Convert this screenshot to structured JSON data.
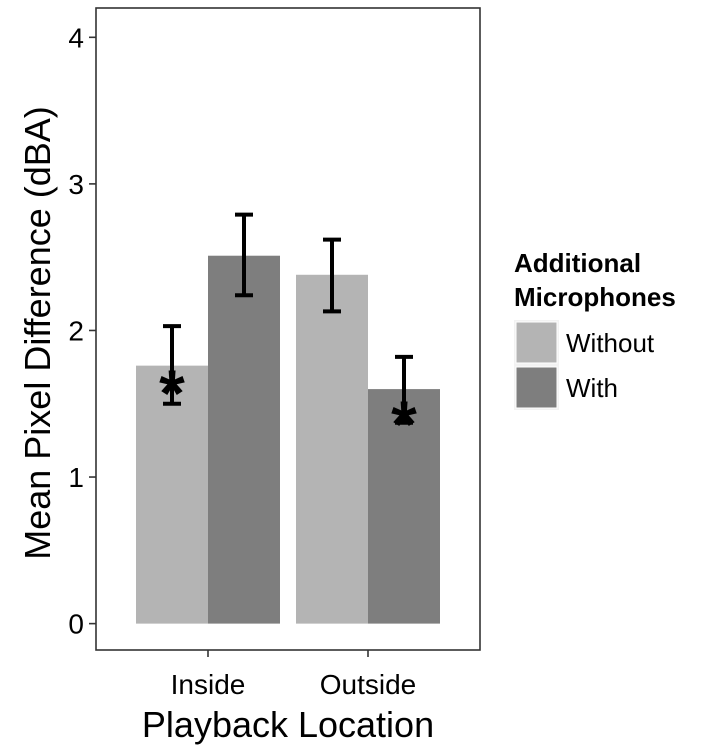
{
  "chart_data": {
    "type": "bar",
    "title": "",
    "xlabel": "Playback Location",
    "ylabel": "Mean Pixel Difference (dBA)",
    "ylim": [
      -0.18,
      4.2
    ],
    "yticks": [
      "0",
      "1",
      "2",
      "3",
      "4"
    ],
    "categories": [
      "Inside",
      "Outside"
    ],
    "grid": false,
    "legend": {
      "title": [
        "Additional",
        "Microphones"
      ],
      "placement": "right"
    },
    "series": [
      {
        "name": "Without",
        "color": "#b4b4b4",
        "values": [
          1.76,
          2.38
        ],
        "error": [
          [
            1.5,
            2.03
          ],
          [
            2.13,
            2.62
          ]
        ],
        "annotations": [
          "*",
          ""
        ]
      },
      {
        "name": "With",
        "color": "#7e7e7e",
        "values": [
          2.51,
          1.6
        ],
        "error": [
          [
            2.24,
            2.79
          ],
          [
            1.37,
            1.82
          ]
        ],
        "annotations": [
          "",
          "*"
        ]
      }
    ]
  }
}
